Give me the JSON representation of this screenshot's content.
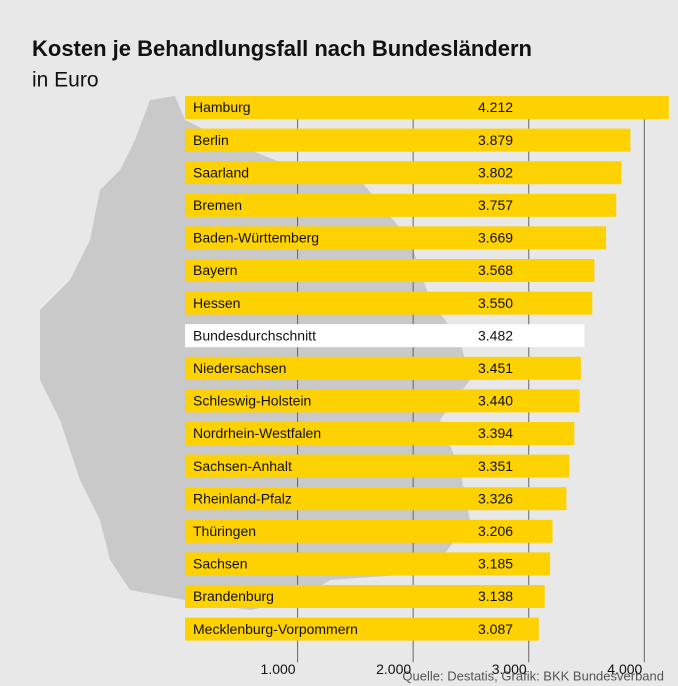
{
  "chart_data": {
    "type": "barh",
    "title": "Kosten je Behandlungsfall nach Bundesländern",
    "subtitle": "in Euro",
    "source": "Quelle: Destatis, Grafik: BKK Bundesverband",
    "categories": [
      "Hamburg",
      "Berlin",
      "Saarland",
      "Bremen",
      "Baden-Württemberg",
      "Bayern",
      "Hessen",
      "Bundesdurchschnitt",
      "Niedersachsen",
      "Schleswig-Holstein",
      "Nordrhein-Westfalen",
      "Sachsen-Anhalt",
      "Rheinland-Pfalz",
      "Thüringen",
      "Sachsen",
      "Brandenburg",
      "Mecklenburg-Vorpommern"
    ],
    "values": [
      4212,
      3879,
      3802,
      3757,
      3669,
      3568,
      3550,
      3482,
      3451,
      3440,
      3394,
      3351,
      3326,
      3206,
      3185,
      3138,
      3087
    ],
    "value_labels": [
      "4.212",
      "3.879",
      "3.802",
      "3.757",
      "3.669",
      "3.568",
      "3.550",
      "3.482",
      "3.451",
      "3.440",
      "3.394",
      "3.351",
      "3.326",
      "3.206",
      "3.185",
      "3.138",
      "3.087"
    ],
    "colors": [
      "#fed100",
      "#fed100",
      "#fed100",
      "#fed100",
      "#fed100",
      "#fed100",
      "#fed100",
      "#ffffff",
      "#fed100",
      "#fed100",
      "#fed100",
      "#fed100",
      "#fed100",
      "#fed100",
      "#fed100",
      "#fed100",
      "#fed100"
    ],
    "xlim": [
      0,
      4300
    ],
    "xticks": [
      {
        "value": 1000,
        "label": "1.000"
      },
      {
        "value": 2000,
        "label": "2.000"
      },
      {
        "value": 3000,
        "label": "3.000"
      },
      {
        "value": 4000,
        "label": "4.000"
      }
    ],
    "grid": true
  }
}
